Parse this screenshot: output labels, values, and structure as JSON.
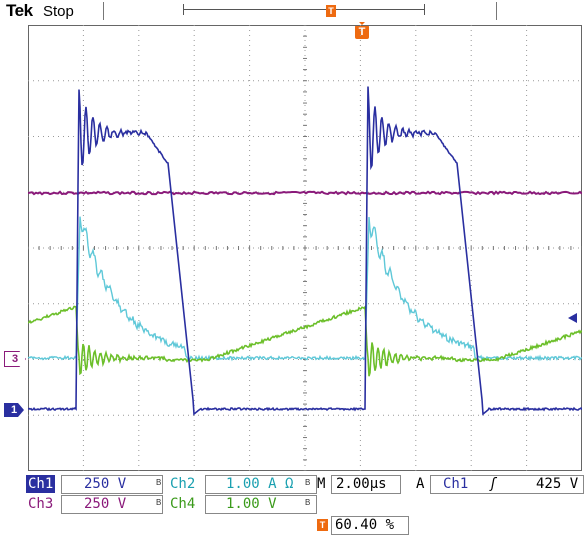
{
  "header": {
    "brand": "Tek",
    "acquisition_state": "Stop",
    "trigger_marker_glyph": "T",
    "trigger_position_icon": "trigger-position-icon"
  },
  "colors": {
    "ch1": "#2a2fa0",
    "ch2": "#5fc8d8",
    "ch3": "#8a1a7a",
    "ch4": "#6cbf2a",
    "trigger": "#ee6a10",
    "grid": "#999999"
  },
  "markers": {
    "ch1_label": "1",
    "ch3_label": "3"
  },
  "readout": {
    "row1": {
      "ch1_name": "Ch1",
      "ch1_scale": "250 V",
      "ch2_name": "Ch2",
      "ch2_scale": "1.00 A Ω",
      "timebase_prefix": "M",
      "timebase": "2.00µs",
      "trigger_mode": "A",
      "trigger_source": "Ch1",
      "trigger_slope": "ʃ",
      "trigger_level": "425 V"
    },
    "row2": {
      "ch3_name": "Ch3",
      "ch3_scale": "250 V",
      "ch4_name": "Ch4",
      "ch4_scale": "1.00 V"
    },
    "bw_mark": "B",
    "trigger_position": "60.40 %"
  }
}
